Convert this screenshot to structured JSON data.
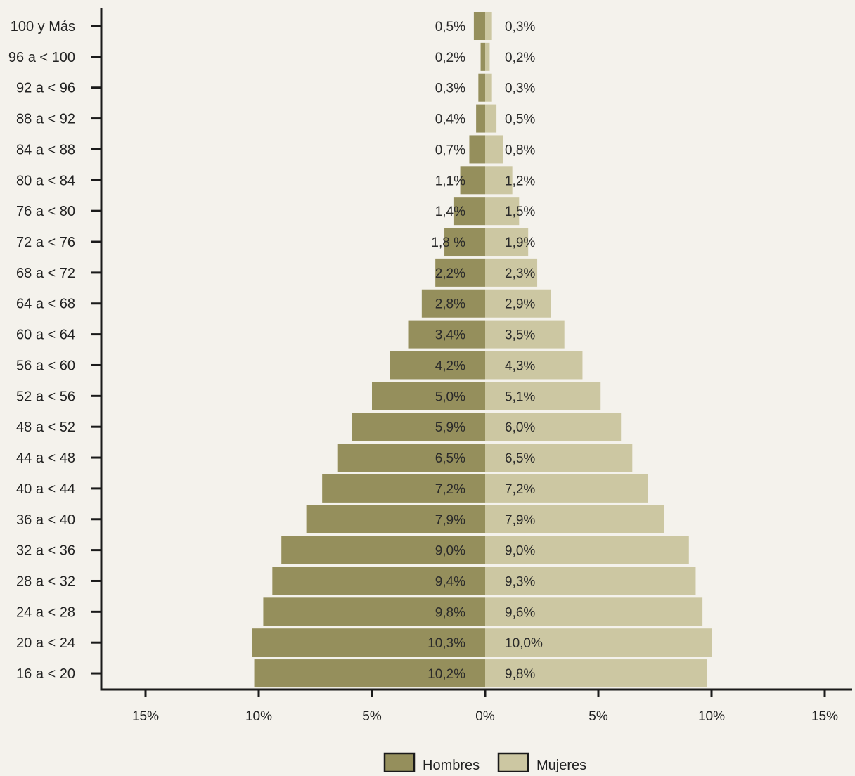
{
  "chart_data": {
    "type": "bar",
    "orientation": "horizontal-population-pyramid",
    "categories": [
      "100 y Más",
      "96 a < 100",
      "92 a < 96",
      "88 a < 92",
      "84 a < 88",
      "80 a < 84",
      "76 a < 80",
      "72 a < 76",
      "68 a < 72",
      "64 a < 68",
      "60 a < 64",
      "56 a < 60",
      "52 a < 56",
      "48 a < 52",
      "44 a < 48",
      "40 a < 44",
      "36 a < 40",
      "32 a < 36",
      "28 a < 32",
      "24 a < 28",
      "20 a < 24",
      "16 a < 20"
    ],
    "series": [
      {
        "name": "Hombres",
        "color": "#958f5c",
        "values": [
          0.5,
          0.2,
          0.3,
          0.4,
          0.7,
          1.1,
          1.4,
          1.8,
          2.2,
          2.8,
          3.4,
          4.2,
          5.0,
          5.9,
          6.5,
          7.2,
          7.9,
          9.0,
          9.4,
          9.8,
          10.3,
          10.2
        ],
        "labels": [
          "0,5%",
          "0,2%",
          "0,3%",
          "0,4%",
          "0,7%",
          "1,1%",
          "1,4%",
          "1,8 %",
          "2,2%",
          "2,8%",
          "3,4%",
          "4,2%",
          "5,0%",
          "5,9%",
          "6,5%",
          "7,2%",
          "7,9%",
          "9,0%",
          "9,4%",
          "9,8%",
          "10,3%",
          "10,2%"
        ]
      },
      {
        "name": "Mujeres",
        "color": "#ccc7a2",
        "values": [
          0.3,
          0.2,
          0.3,
          0.5,
          0.8,
          1.2,
          1.5,
          1.9,
          2.3,
          2.9,
          3.5,
          4.3,
          5.1,
          6.0,
          6.5,
          7.2,
          7.9,
          9.0,
          9.3,
          9.6,
          10.0,
          9.8
        ],
        "labels": [
          "0,3%",
          "0,2%",
          "0,3%",
          "0,5%",
          "0,8%",
          "1,2%",
          "1,5%",
          "1,9%",
          "2,3%",
          "2,9%",
          "3,5%",
          "4,3%",
          "5,1%",
          "6,0%",
          "6,5%",
          "7,2%",
          "7,9%",
          "9,0%",
          "9,3%",
          "9,6%",
          "10,0%",
          "9,8%"
        ]
      }
    ],
    "xlim": [
      -16,
      16
    ],
    "xticks": [
      -15,
      -10,
      -5,
      0,
      5,
      10,
      15
    ],
    "xtick_labels": [
      "15%",
      "10%",
      "5%",
      "0%",
      "5%",
      "10%",
      "15%"
    ],
    "title": "",
    "xlabel": "",
    "ylabel": "",
    "grid": false,
    "legend_position": "bottom-center",
    "background_color": "#f4f2ec",
    "axis_color": "#1a1a1a"
  }
}
